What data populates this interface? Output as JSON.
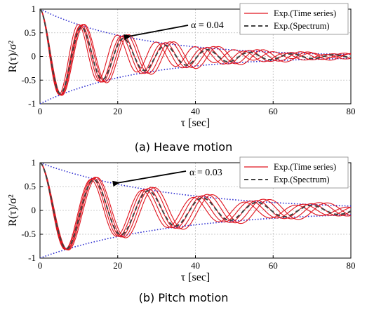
{
  "chart_data": [
    {
      "type": "line",
      "caption": "(a) Heave motion",
      "xlabel": "τ [sec]",
      "ylabel": "R(τ)/σ²",
      "xlim": [
        0,
        80
      ],
      "ylim": [
        -1,
        1
      ],
      "xticks": [
        "0",
        "20",
        "40",
        "60",
        "80"
      ],
      "yticks": [
        "1",
        "0.5",
        "0",
        "-0.5",
        "-1"
      ],
      "grid": true,
      "legend_position": "top-right",
      "annotation": "α = 0.04",
      "alpha": 0.04,
      "series": [
        {
          "name": "Exp.(Time series)",
          "style": "solid",
          "color": "#e0141e",
          "curves": [
            {
              "period": 10.8,
              "decay": 0.038,
              "phase": 0.0,
              "offset": 0.0
            },
            {
              "period": 11.2,
              "decay": 0.036,
              "phase": 0.0,
              "offset": 0.01
            },
            {
              "period": 10.5,
              "decay": 0.04,
              "phase": 0.0,
              "offset": -0.01
            },
            {
              "period": 11.5,
              "decay": 0.034,
              "phase": 0.0,
              "offset": 0.0
            },
            {
              "period": 10.0,
              "decay": 0.042,
              "phase": 0.0,
              "offset": 0.02
            }
          ]
        },
        {
          "name": "Exp.(Spectrum)",
          "style": "dashed",
          "color": "#404040",
          "curves": [
            {
              "period": 10.8,
              "decay": 0.045,
              "phase": 0.0,
              "offset": 0.0
            }
          ]
        }
      ]
    },
    {
      "type": "line",
      "caption": "(b) Pitch motion",
      "xlabel": "τ [sec]",
      "ylabel": "R(τ)/σ²",
      "xlim": [
        0,
        80
      ],
      "ylim": [
        -1,
        1
      ],
      "xticks": [
        "0",
        "20",
        "40",
        "60",
        "80"
      ],
      "yticks": [
        "1",
        "0.5",
        "0",
        "-0.5",
        "-1"
      ],
      "grid": true,
      "legend_position": "top-right",
      "annotation": "α = 0.03",
      "alpha": 0.03,
      "series": [
        {
          "name": "Exp.(Time series)",
          "style": "solid",
          "color": "#e0141e",
          "curves": [
            {
              "period": 14.0,
              "decay": 0.028,
              "phase": 0.0,
              "offset": 0.0
            },
            {
              "period": 13.6,
              "decay": 0.03,
              "phase": 0.0,
              "offset": 0.0
            },
            {
              "period": 14.4,
              "decay": 0.026,
              "phase": 0.0,
              "offset": 0.01
            },
            {
              "period": 13.2,
              "decay": 0.032,
              "phase": 0.0,
              "offset": -0.01
            },
            {
              "period": 14.8,
              "decay": 0.025,
              "phase": 0.0,
              "offset": 0.0
            }
          ]
        },
        {
          "name": "Exp.(Spectrum)",
          "style": "dashed",
          "color": "#404040",
          "curves": [
            {
              "period": 14.0,
              "decay": 0.032,
              "phase": 0.0,
              "offset": 0.0
            }
          ]
        }
      ]
    }
  ],
  "envelope_color": "#2a2ad0"
}
